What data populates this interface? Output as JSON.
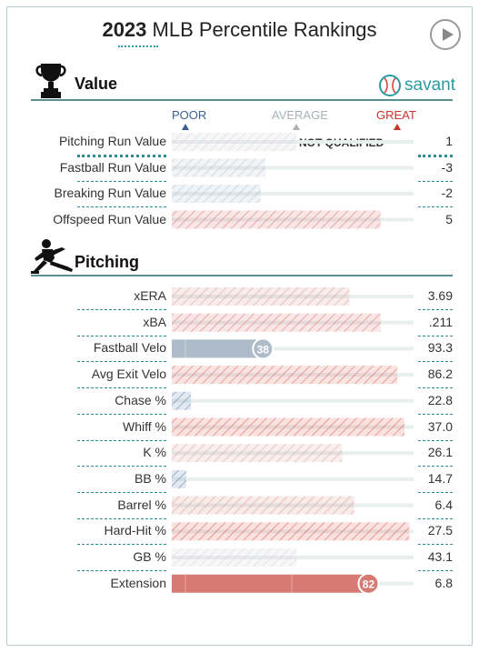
{
  "header": {
    "year": "2023",
    "title": "MLB Percentile Rankings"
  },
  "brand": {
    "name": "savant",
    "color": "#2a9ba0"
  },
  "scale": {
    "poor": "POOR",
    "average": "AVERAGE",
    "great": "GREAT"
  },
  "sections": {
    "value": {
      "label": "Value",
      "icon": "trophy-icon"
    },
    "pitching": {
      "label": "Pitching",
      "icon": "pitcher-icon"
    }
  },
  "colors": {
    "poor": "#3c6a9c",
    "great": "#d8473a",
    "accent": "#2a9ba0"
  },
  "chart_data": {
    "type": "bar",
    "title": "2023 MLB Percentile Rankings",
    "xlim": [
      0,
      100
    ],
    "value_rows": [
      {
        "metric": "Pitching Run Value",
        "percentile": 52,
        "value": "1",
        "qualified": false,
        "note": "NOT QUALIFIED"
      },
      {
        "metric": "Fastball Run Value",
        "percentile": 39,
        "value": "-3"
      },
      {
        "metric": "Breaking Run Value",
        "percentile": 37,
        "value": "-2"
      },
      {
        "metric": "Offspeed Run Value",
        "percentile": 87,
        "value": "5"
      }
    ],
    "pitching_rows": [
      {
        "metric": "xERA",
        "percentile": 74,
        "value": "3.69"
      },
      {
        "metric": "xBA",
        "percentile": 87,
        "value": ".211"
      },
      {
        "metric": "Fastball Velo",
        "percentile": 38,
        "value": "93.3",
        "label": "38",
        "highlight": true
      },
      {
        "metric": "Avg Exit Velo",
        "percentile": 94,
        "value": "86.2"
      },
      {
        "metric": "Chase %",
        "percentile": 8,
        "value": "22.8"
      },
      {
        "metric": "Whiff %",
        "percentile": 97,
        "value": "37.0"
      },
      {
        "metric": "K %",
        "percentile": 71,
        "value": "26.1"
      },
      {
        "metric": "BB %",
        "percentile": 6,
        "value": "14.7"
      },
      {
        "metric": "Barrel %",
        "percentile": 76,
        "value": "6.4"
      },
      {
        "metric": "Hard-Hit %",
        "percentile": 99,
        "value": "27.5"
      },
      {
        "metric": "GB %",
        "percentile": 52,
        "value": "43.1"
      },
      {
        "metric": "Extension",
        "percentile": 82,
        "value": "6.8",
        "label": "82",
        "highlight": true
      }
    ]
  }
}
